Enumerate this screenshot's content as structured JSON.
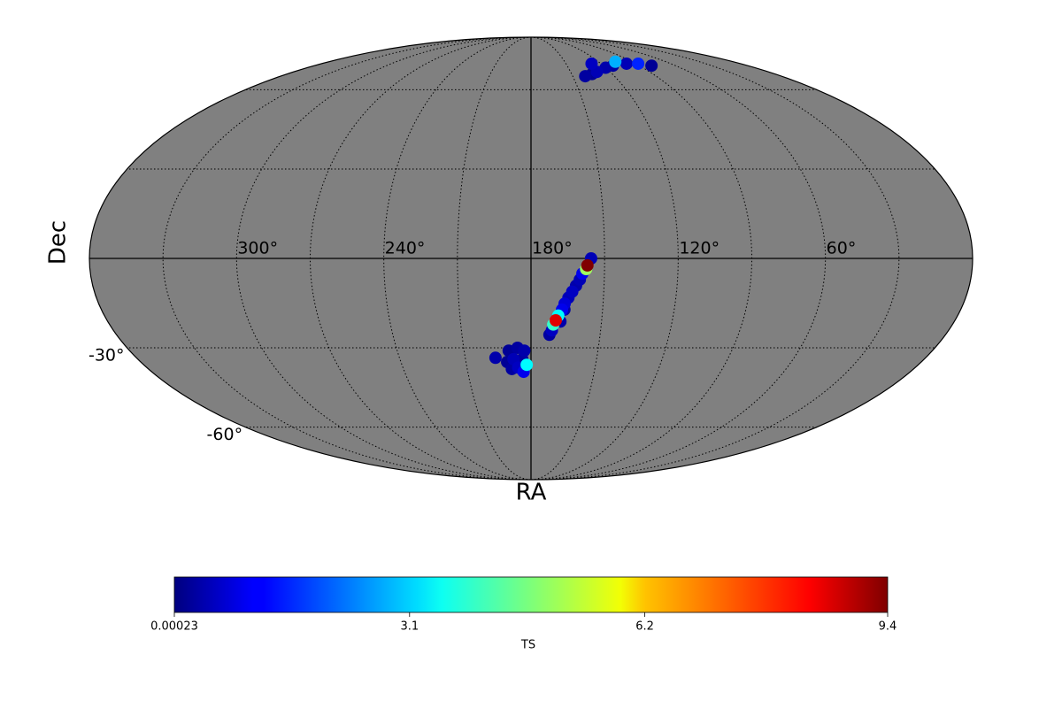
{
  "chart_data": {
    "type": "mollweide",
    "xlabel": "RA",
    "ylabel": "Dec",
    "background": "#808080",
    "center_ra": 180,
    "ra_ticks": [
      {
        "value": 300,
        "label": "300°"
      },
      {
        "value": 240,
        "label": "240°"
      },
      {
        "value": 180,
        "label": "180°"
      },
      {
        "value": 120,
        "label": "120°"
      },
      {
        "value": 60,
        "label": "60°"
      }
    ],
    "dec_ticks": [
      {
        "value": -30,
        "label": "-30°"
      },
      {
        "value": -60,
        "label": "-60°"
      }
    ],
    "ra_grid": [
      30,
      60,
      90,
      120,
      150,
      180,
      210,
      240,
      270,
      300,
      330
    ],
    "dec_grid": [
      -60,
      -30,
      0,
      30,
      60
    ],
    "points": {
      "ra": [
        141,
        130,
        120,
        128,
        112,
        105,
        98,
        88,
        80,
        135,
        155.5,
        157,
        157.5,
        159,
        160,
        161.5,
        163,
        164.5,
        166,
        167,
        168.5,
        169.5,
        170.5,
        171,
        172,
        166,
        167.5,
        186,
        190,
        183,
        188,
        184,
        191,
        182,
        186,
        183.5,
        189,
        196.2
      ],
      "dec": [
        66,
        68,
        70,
        72,
        71,
        73,
        72,
        72,
        71,
        67,
        0,
        -2.3,
        -3.5,
        -5,
        -7,
        -9,
        -11,
        -13,
        -15,
        -17,
        -19,
        -20.6,
        -22,
        -24,
        -25.5,
        -17,
        -21,
        -30,
        -31,
        -31,
        -34,
        -34,
        -35,
        -36,
        -37,
        -38.5,
        -37.5,
        -33.5
      ],
      "ts": [
        0.3,
        0.5,
        0.4,
        0.6,
        0.3,
        2.8,
        0.5,
        1.5,
        0.2,
        0.2,
        0.5,
        9.4,
        5,
        1,
        0.5,
        0.4,
        0.6,
        0.5,
        0.8,
        1,
        3.5,
        8.5,
        4,
        0.6,
        0.3,
        0.3,
        0.4,
        0.3,
        0.2,
        0.4,
        0.5,
        0.3,
        0.2,
        3.5,
        0.6,
        1,
        0.3,
        0.4
      ]
    },
    "colorbar": {
      "label": "TS",
      "lim": [
        0.00023,
        9.4
      ],
      "ticks": [
        0.00023,
        3.1,
        6.2,
        9.4
      ]
    }
  }
}
